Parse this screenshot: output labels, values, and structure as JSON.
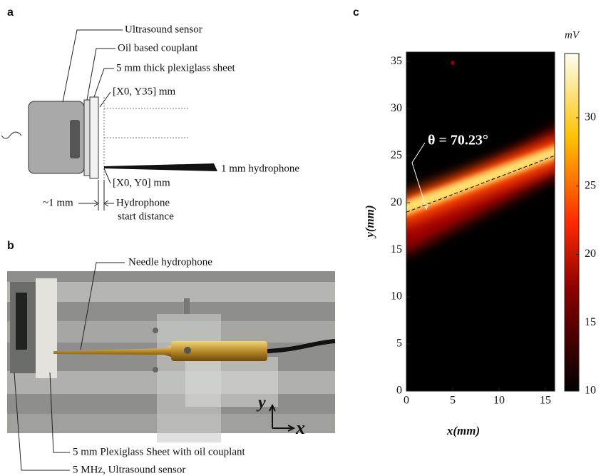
{
  "panels": {
    "a": {
      "label": "a",
      "sensor": "Ultrasound sensor",
      "couplant": "Oil based couplant",
      "sheet": "5 mm thick plexiglass sheet",
      "top_point": "[X0, Y35] mm",
      "hydrophone": "1 mm hydrophone",
      "origin_point": "[X0, Y0] mm",
      "gap": "~1 mm",
      "start_1": "Hydrophone",
      "start_2": "start distance"
    },
    "b": {
      "label": "b",
      "needle": "Needle hydrophone",
      "sheet": "5 mm Plexiglass Sheet with oil couplant",
      "sensor": "5 MHz, Ultrasound sensor",
      "axis_y": "y",
      "axis_x": "x"
    }
  },
  "chart_data": {
    "type": "heatmap",
    "label": "c",
    "xlabel": "x(mm)",
    "ylabel": "y(mm)",
    "xlim": [
      0,
      16
    ],
    "ylim": [
      0,
      36
    ],
    "xticks": [
      0,
      5,
      10,
      15
    ],
    "yticks": [
      0,
      5,
      10,
      15,
      20,
      25,
      30,
      35
    ],
    "annotation": "θ = 70.23°",
    "colorbar": {
      "label": "mV",
      "lim": [
        10,
        34.7
      ],
      "ticks": [
        10,
        15,
        20,
        25,
        30
      ]
    }
  }
}
